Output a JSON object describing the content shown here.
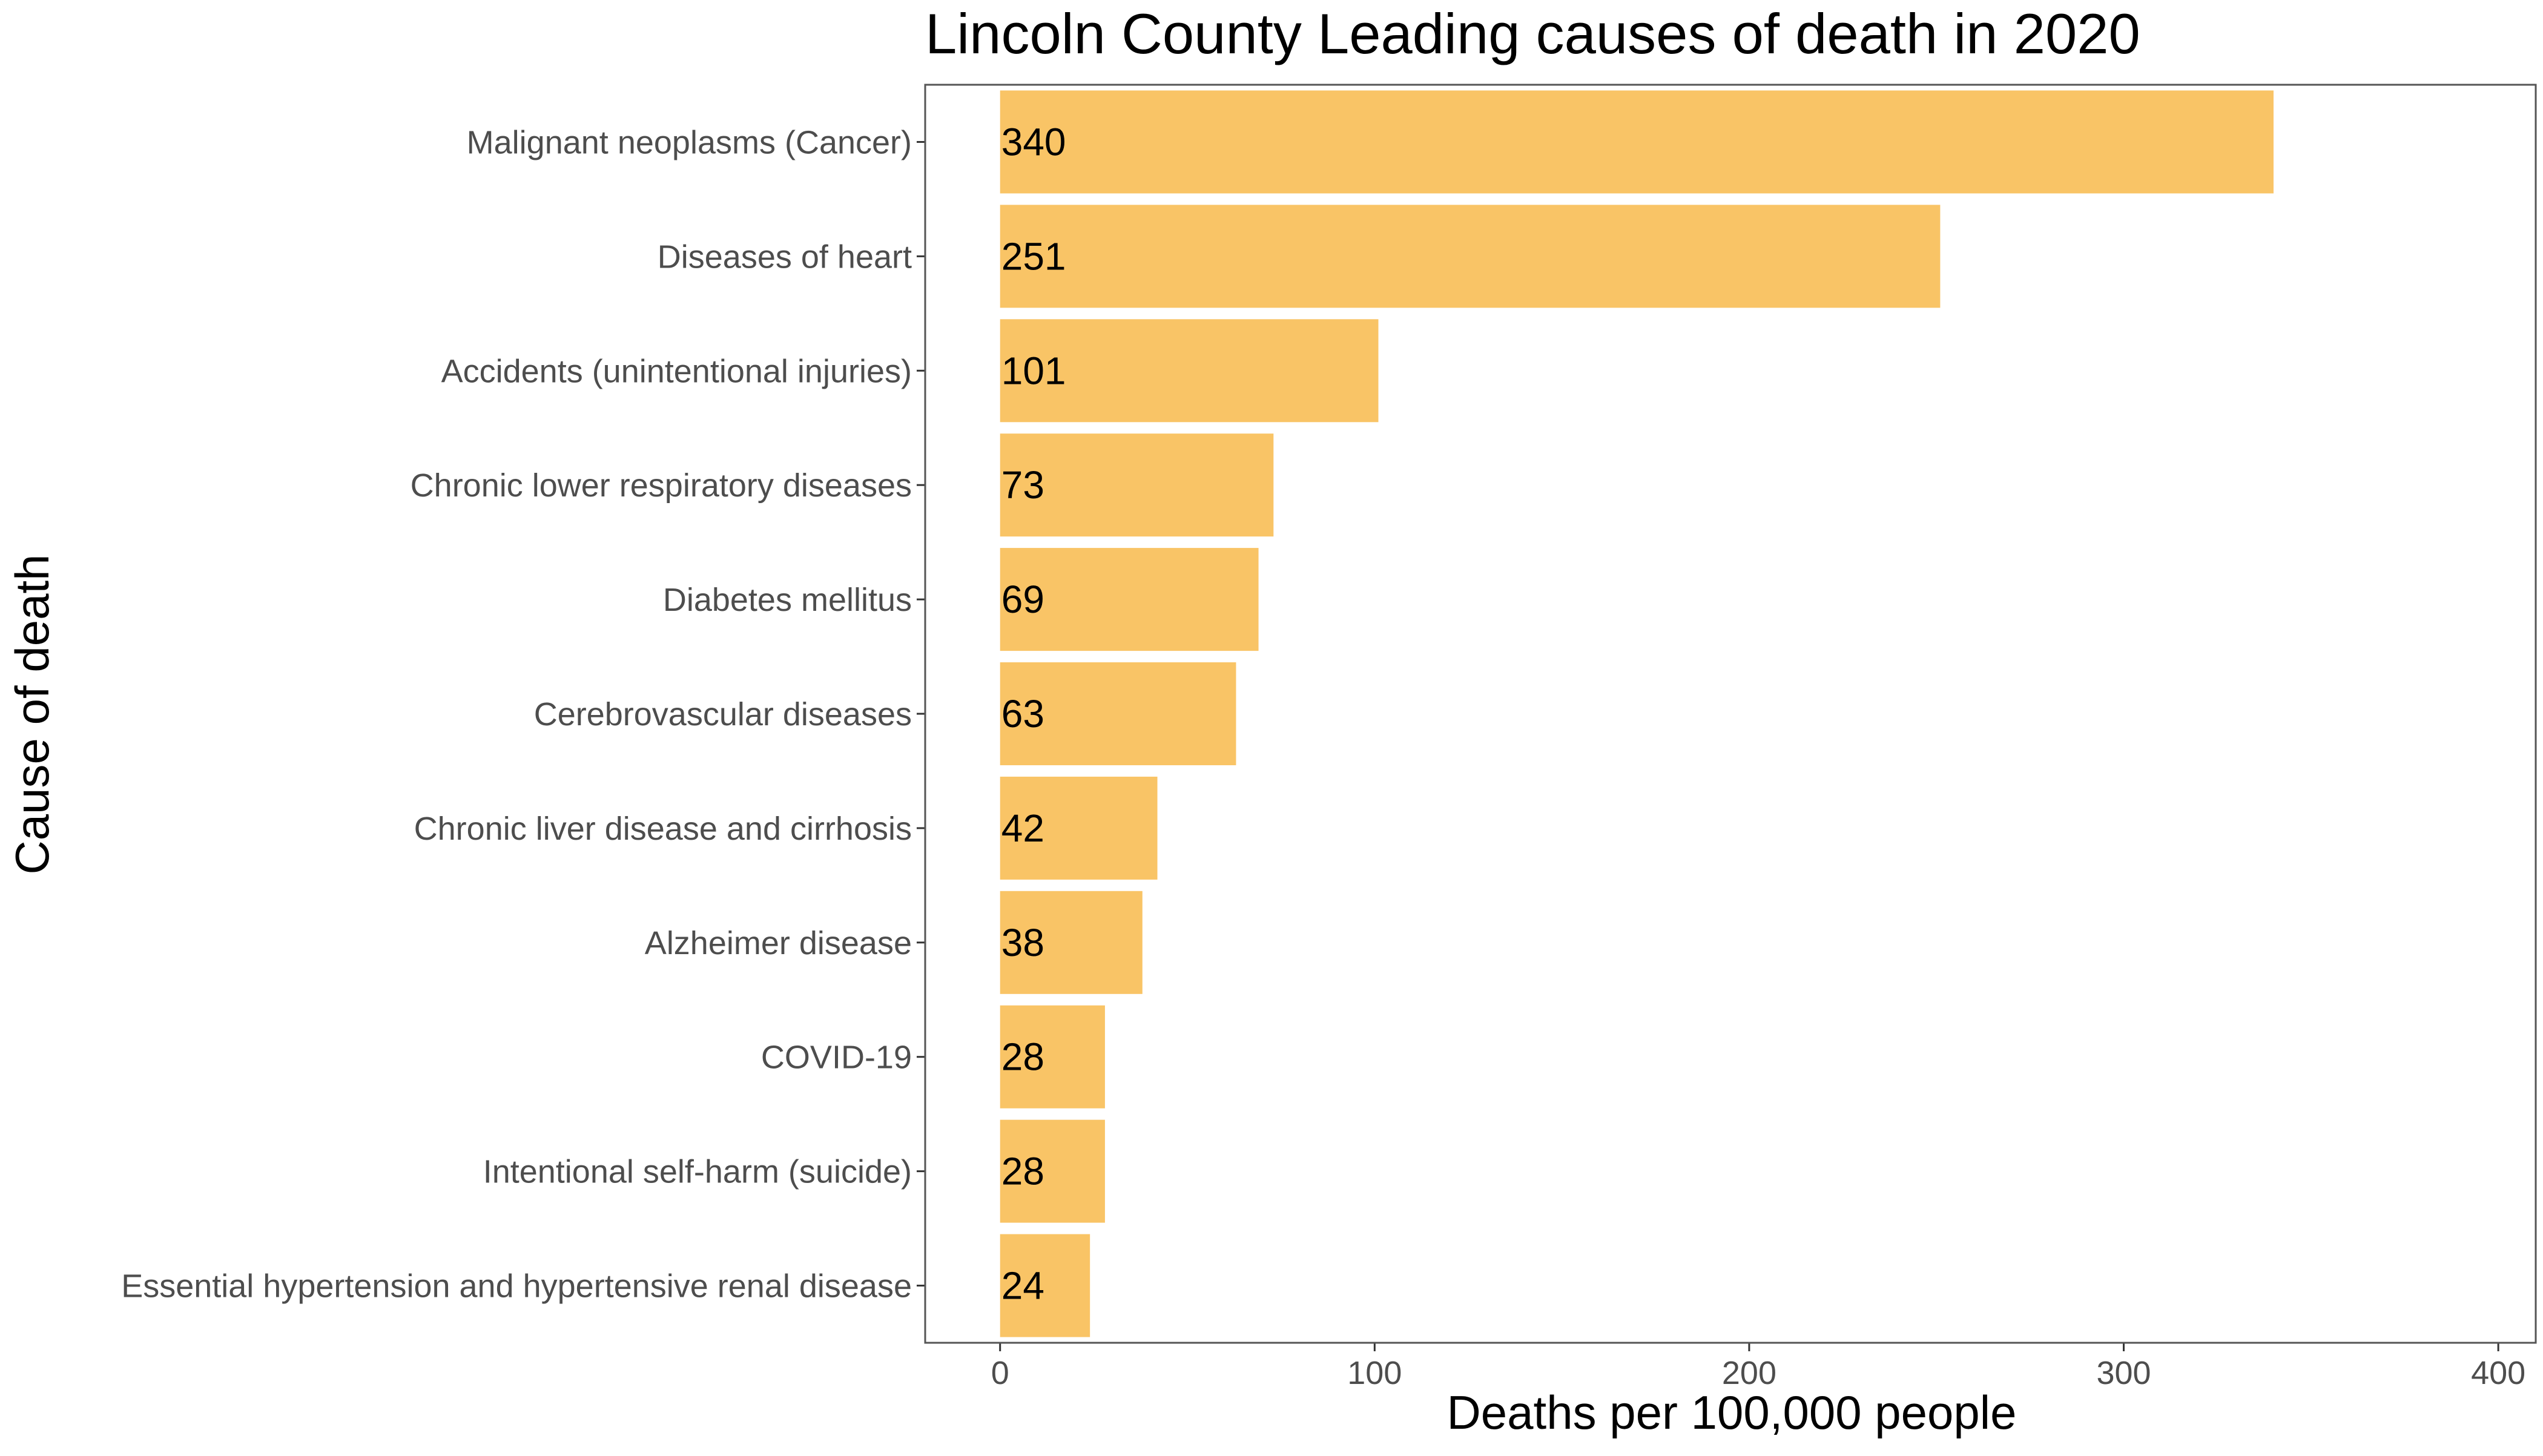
{
  "chart_data": {
    "type": "bar",
    "orientation": "horizontal",
    "title": "Lincoln County Leading causes of death in 2020",
    "xlabel": "Deaths per 100,000 people",
    "ylabel": "Cause of death",
    "categories": [
      "Malignant neoplasms (Cancer)",
      "Diseases of heart",
      "Accidents (unintentional injuries)",
      "Chronic lower respiratory diseases",
      "Diabetes mellitus",
      "Cerebrovascular diseases",
      "Chronic liver disease and cirrhosis",
      "Alzheimer disease",
      "COVID-19",
      "Intentional self-harm (suicide)",
      "Essential hypertension and hypertensive renal disease"
    ],
    "values": [
      340,
      251,
      101,
      73,
      69,
      63,
      42,
      38,
      28,
      28,
      24
    ],
    "xlim": [
      -20,
      410
    ],
    "xticks": [
      0,
      100,
      200,
      300,
      400
    ],
    "grid": false,
    "legend": "none",
    "bar_color": "#f9c466",
    "frame_color": "#555555"
  }
}
